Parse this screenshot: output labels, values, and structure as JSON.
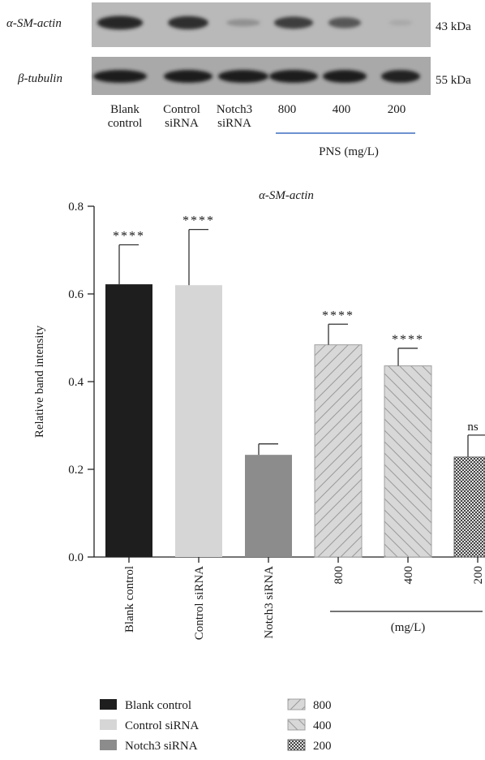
{
  "western_blot": {
    "rows": [
      {
        "label": "α-SM-actin",
        "size": "43 kDa"
      },
      {
        "label": "β-tubulin",
        "size": "55 kDa"
      }
    ],
    "lane_labels": [
      [
        "Blank",
        "control"
      ],
      [
        "Control",
        "siRNA"
      ],
      [
        "Notch3",
        "siRNA"
      ],
      [
        "800"
      ],
      [
        "400"
      ],
      [
        "200"
      ]
    ],
    "group_label": "PNS (mg/L)",
    "band_intensity_alpha": [
      0.9,
      0.85,
      0.25,
      0.75,
      0.6,
      0.1
    ],
    "band_intensity_tubulin": [
      0.95,
      0.95,
      0.95,
      0.95,
      0.95,
      0.9
    ]
  },
  "chart_data": {
    "type": "bar",
    "title": "α-SM-actin",
    "ylabel": "Relative band intensity",
    "xlabel": "",
    "categories": [
      "Blank control",
      "Control siRNA",
      "Notch3 siRNA",
      "800",
      "400",
      "200"
    ],
    "values": [
      0.622,
      0.62,
      0.233,
      0.484,
      0.436,
      0.228
    ],
    "errors": [
      0.09,
      0.127,
      0.025,
      0.047,
      0.04,
      0.05
    ],
    "significance": [
      "****",
      "****",
      "",
      "****",
      "****",
      "ns"
    ],
    "ylim": [
      0,
      0.8
    ],
    "yticks": [
      "0.0",
      "0.2",
      "0.4",
      "0.6",
      "0.8"
    ],
    "ytick_values": [
      0,
      0.2,
      0.4,
      0.6,
      0.8
    ],
    "group_label": "(mg/L)",
    "fills": [
      "black",
      "light-gray",
      "gray",
      "hatch-forward",
      "hatch-back",
      "checker"
    ],
    "colors": {
      "black": "#1e1e1e",
      "light-gray": "#d6d6d6",
      "gray": "#8c8c8c",
      "hatch": "#cfcfcf",
      "checker": "#555555"
    },
    "grid": false,
    "legend": {
      "placement": "bottom",
      "entries": [
        "Blank control",
        "Control siRNA",
        "Notch3 siRNA",
        "800",
        "400",
        "200"
      ]
    }
  }
}
